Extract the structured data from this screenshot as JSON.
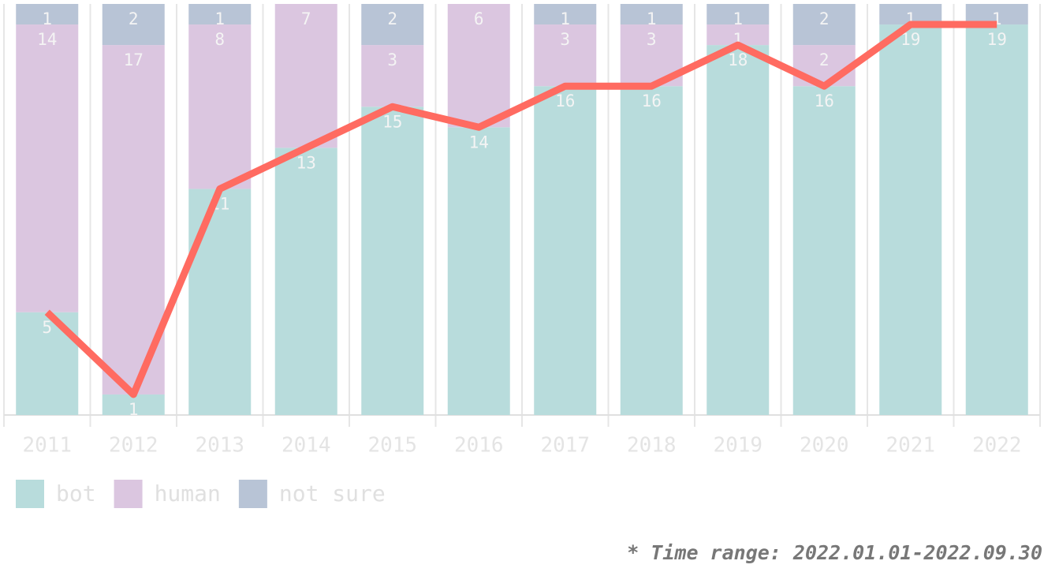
{
  "chart_data": {
    "type": "stacked-bar-line",
    "categories": [
      "2011",
      "2012",
      "2013",
      "2014",
      "2015",
      "2016",
      "2017",
      "2018",
      "2019",
      "2020",
      "2021",
      "2022"
    ],
    "series": [
      {
        "name": "bot",
        "color": "#b8dcdc",
        "values": [
          5,
          1,
          11,
          13,
          15,
          14,
          16,
          16,
          18,
          16,
          19,
          19
        ]
      },
      {
        "name": "human",
        "color": "#dbc6e0",
        "values": [
          14,
          17,
          8,
          7,
          3,
          6,
          3,
          3,
          1,
          2,
          0,
          0
        ]
      },
      {
        "name": "not sure",
        "color": "#b8c4d6",
        "values": [
          1,
          2,
          1,
          0,
          2,
          0,
          1,
          1,
          1,
          2,
          1,
          1
        ]
      }
    ],
    "line_color": "#ff6b61",
    "ylim": [
      0,
      20
    ],
    "note": "* Time range: 2022.01.01-2022.09.30"
  }
}
